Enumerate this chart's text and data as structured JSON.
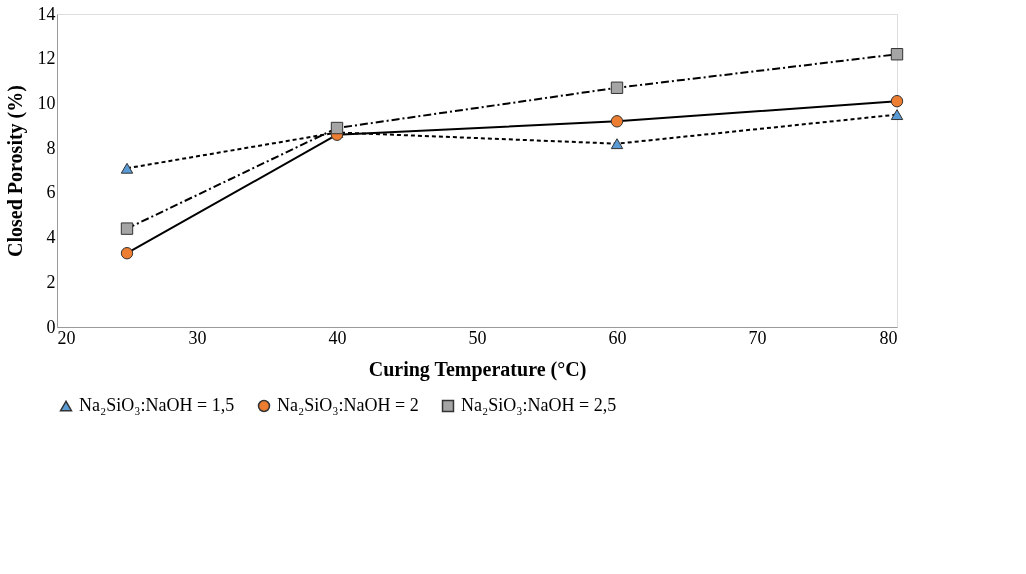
{
  "chart_data": {
    "type": "line",
    "xlabel": "Curing Temperature (°C)",
    "ylabel": "Closed Porosity (%)",
    "x": [
      25,
      40,
      60,
      80
    ],
    "series": [
      {
        "name": "Na₂SiO₃:NaOH = 1,5",
        "color": "#5b9bd5",
        "marker": "triangle",
        "line_style": "dashed",
        "values": [
          7.1,
          8.7,
          8.2,
          9.5
        ]
      },
      {
        "name": "Na₂SiO₃:NaOH = 2",
        "color": "#ed7d31",
        "marker": "circle",
        "line_style": "solid",
        "values": [
          3.3,
          8.6,
          9.2,
          10.1
        ]
      },
      {
        "name": "Na₂SiO₃:NaOH = 2,5",
        "color": "#a5a5a5",
        "marker": "square",
        "line_style": "dashdot",
        "values": [
          4.4,
          8.9,
          10.7,
          12.2
        ]
      }
    ],
    "xlim": [
      20,
      80
    ],
    "xticks": [
      20,
      30,
      40,
      50,
      60,
      70,
      80
    ],
    "ylim": [
      0,
      14
    ],
    "yticks": [
      0,
      2,
      4,
      6,
      8,
      10,
      12,
      14
    ],
    "grid": false,
    "legend": "bottom"
  }
}
